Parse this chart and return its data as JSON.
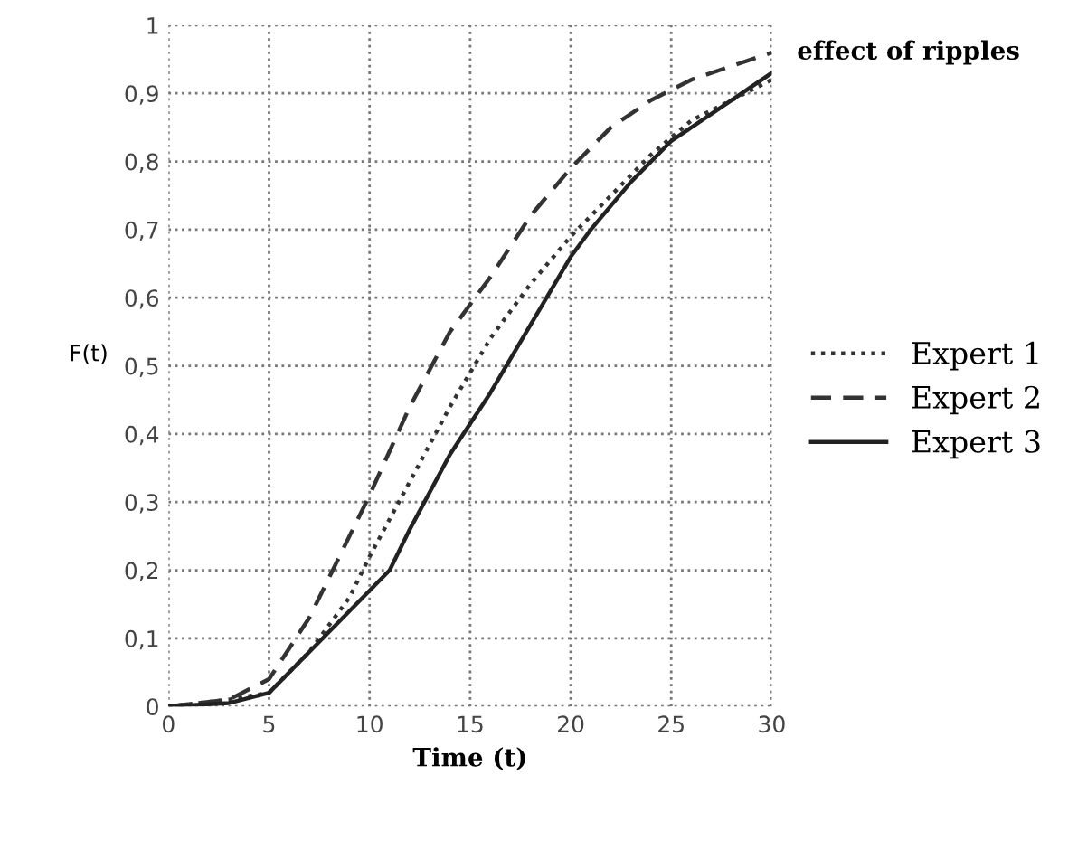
{
  "chart_data": {
    "type": "line",
    "xlabel": "Time (t)",
    "ylabel": "F(t)",
    "xlim": [
      0,
      30
    ],
    "xticks": [
      0,
      5,
      10,
      15,
      20,
      25,
      30
    ],
    "ylim": [
      0,
      1
    ],
    "yticks": [
      0,
      {
        "value": 0.1,
        "label": "0,1"
      },
      {
        "value": 0.2,
        "label": "0,2"
      },
      {
        "value": 0.3,
        "label": "0,3"
      },
      {
        "value": 0.4,
        "label": "0,4"
      },
      {
        "value": 0.5,
        "label": "0,5"
      },
      {
        "value": 0.6,
        "label": "0,6"
      },
      {
        "value": 0.7,
        "label": "0,7"
      },
      {
        "value": 0.8,
        "label": "0,8"
      },
      {
        "value": 0.9,
        "label": "0,9"
      },
      1
    ],
    "grid": true,
    "legend": "right",
    "marker": "none",
    "annotations": [
      {
        "text": "effect of ripples",
        "x": 30,
        "y": 0.96
      }
    ],
    "series": [
      {
        "name": "Expert 1",
        "color": "#333333",
        "line_style": "dotted",
        "x": [
          0,
          3,
          5,
          7,
          9,
          10,
          12,
          14,
          16,
          18,
          20,
          22,
          24,
          26,
          28,
          30
        ],
        "values": [
          0,
          0.01,
          0.02,
          0.08,
          0.16,
          0.22,
          0.33,
          0.44,
          0.54,
          0.62,
          0.69,
          0.75,
          0.81,
          0.86,
          0.89,
          0.92
        ]
      },
      {
        "name": "Expert 2",
        "color": "#333333",
        "line_style": "dashed",
        "x": [
          0,
          3,
          5,
          7,
          9,
          10,
          12,
          14,
          16,
          18,
          20,
          22,
          24,
          26,
          28,
          30
        ],
        "values": [
          0,
          0.01,
          0.04,
          0.13,
          0.25,
          0.31,
          0.44,
          0.55,
          0.63,
          0.72,
          0.79,
          0.85,
          0.89,
          0.92,
          0.94,
          0.96
        ]
      },
      {
        "name": "Expert 3",
        "color": "#222222",
        "line_style": "solid",
        "x": [
          0,
          3,
          5,
          7,
          9,
          11,
          12,
          14,
          16,
          18,
          20,
          21,
          23,
          25,
          27,
          30
        ],
        "values": [
          0,
          0.005,
          0.02,
          0.08,
          0.14,
          0.2,
          0.26,
          0.37,
          0.46,
          0.56,
          0.66,
          0.7,
          0.77,
          0.83,
          0.87,
          0.93
        ]
      }
    ]
  }
}
